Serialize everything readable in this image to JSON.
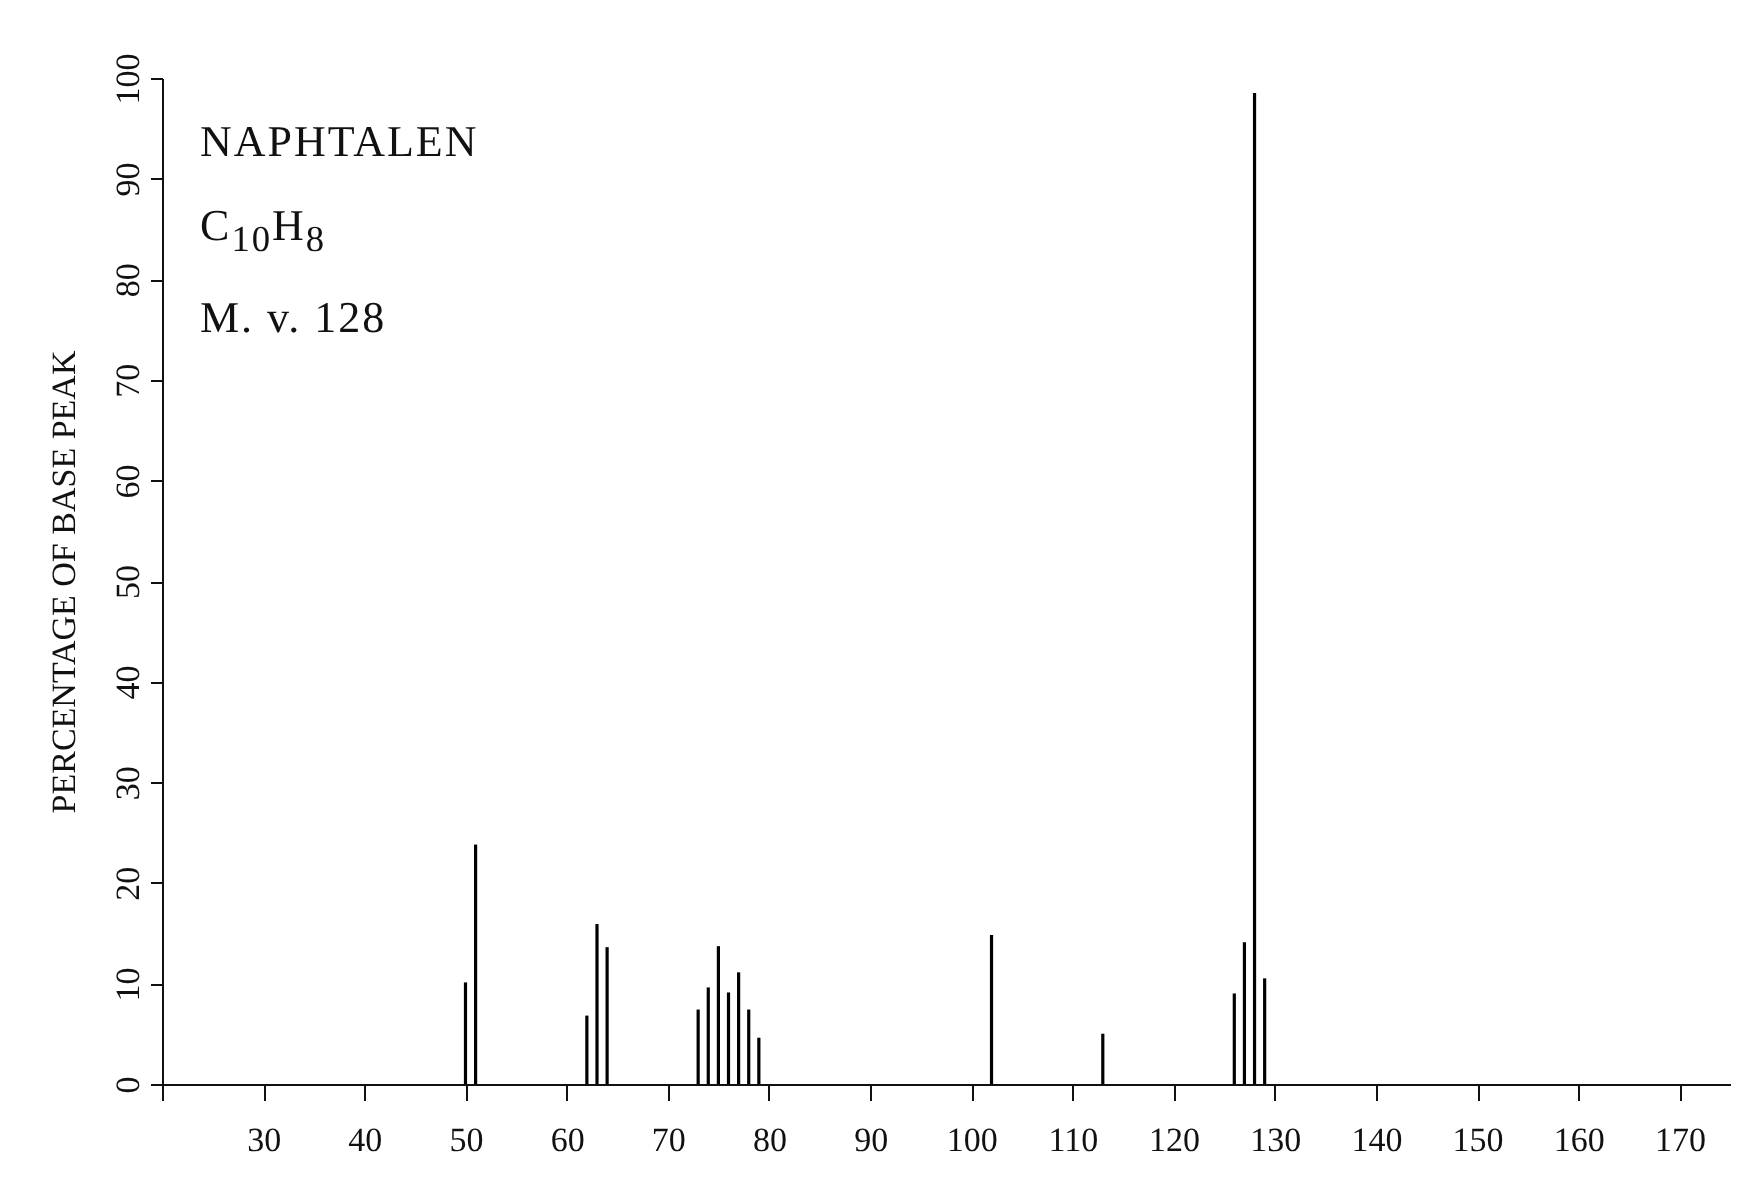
{
  "chart_data": {
    "type": "bar",
    "ylabel": "PERCENTAGE OF BASE PEAK",
    "annotations": [
      "NAPHTALEN",
      "C$_{10}$H$_{8}$",
      "M. v.  128"
    ],
    "series": [
      {
        "color": "#000000",
        "x": [
          50,
          51,
          62,
          63,
          64,
          73,
          74,
          75,
          76,
          77,
          78,
          79,
          102,
          113,
          126,
          127,
          128,
          129
        ],
        "values": [
          10.1,
          23.8,
          6.8,
          15.9,
          13.6,
          7.4,
          9.6,
          13.7,
          9.1,
          11.1,
          7.4,
          4.6,
          14.8,
          5.0,
          9.0,
          14.1,
          98.5,
          10.5
        ]
      }
    ],
    "xlim": [
      20,
      175
    ],
    "xticks": [
      {
        "value": 20,
        "label": null
      },
      30,
      40,
      50,
      60,
      70,
      80,
      90,
      100,
      110,
      120,
      130,
      140,
      150,
      160,
      170
    ],
    "ylim": [
      0,
      100
    ],
    "yticks": [
      0,
      10,
      20,
      30,
      40,
      50,
      60,
      70,
      80,
      90,
      100
    ],
    "grid": false,
    "legend": false
  }
}
